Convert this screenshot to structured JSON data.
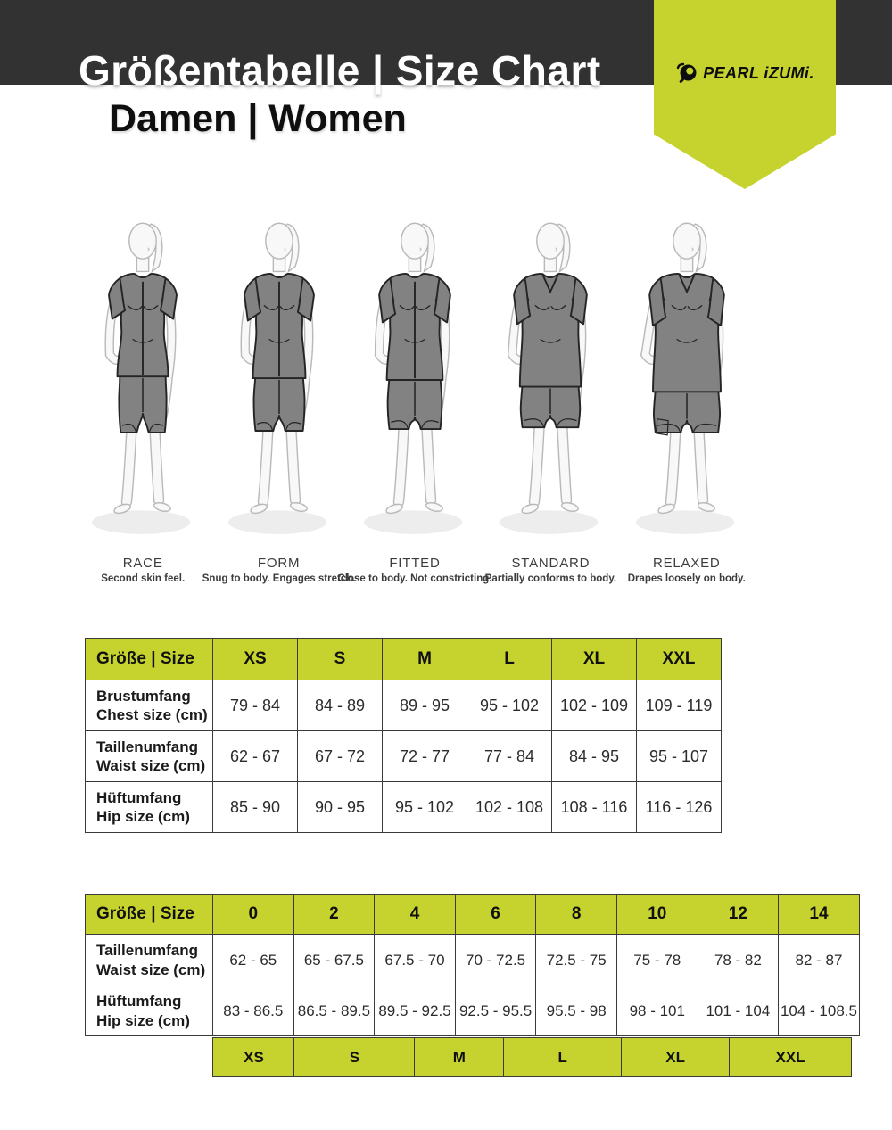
{
  "header": {
    "title": "Größentabelle | Size Chart",
    "subtitle": "Damen | Women",
    "brand": "PEARL iZUMi."
  },
  "colors": {
    "lime": "#c6d32e",
    "bar": "#323232",
    "garment": "#828282"
  },
  "fits": [
    {
      "name": "RACE",
      "desc": "Second skin feel."
    },
    {
      "name": "FORM",
      "desc": "Snug to body. Engages stretch."
    },
    {
      "name": "FITTED",
      "desc": "Close to body. Not constricting."
    },
    {
      "name": "STANDARD",
      "desc": "Partially conforms to body."
    },
    {
      "name": "RELAXED",
      "desc": "Drapes loosely on body."
    }
  ],
  "size_table": {
    "header": [
      "Größe | Size",
      "XS",
      "S",
      "M",
      "L",
      "XL",
      "XXL"
    ],
    "rows": [
      {
        "label_de": "Brustumfang",
        "label_en": "Chest size (cm)",
        "values": [
          "79 - 84",
          "84 - 89",
          "89 - 95",
          "95 - 102",
          "102 - 109",
          "109 - 119"
        ]
      },
      {
        "label_de": "Taillenumfang",
        "label_en": "Waist size (cm)",
        "values": [
          "62 - 67",
          "67 - 72",
          "72 - 77",
          "77 - 84",
          "84 - 95",
          "95 - 107"
        ]
      },
      {
        "label_de": "Hüftumfang",
        "label_en": "Hip size (cm)",
        "values": [
          "85 - 90",
          "90 - 95",
          "95 - 102",
          "102 - 108",
          "108 - 116",
          "116 - 126"
        ]
      }
    ]
  },
  "numeric_table": {
    "header": [
      "Größe | Size",
      "0",
      "2",
      "4",
      "6",
      "8",
      "10",
      "12",
      "14"
    ],
    "rows": [
      {
        "label_de": "Taillenumfang",
        "label_en": "Waist size (cm)",
        "values": [
          "62 - 65",
          "65 - 67.5",
          "67.5 - 70",
          "70 - 72.5",
          "72.5 - 75",
          "75 - 78",
          "78 - 82",
          "82 - 87"
        ]
      },
      {
        "label_de": "Hüftumfang",
        "label_en": "Hip size (cm)",
        "values": [
          "83 - 86.5",
          "86.5 - 89.5",
          "89.5 - 92.5",
          "92.5 - 95.5",
          "95.5 - 98",
          "98 - 101",
          "101 - 104",
          "104 - 108.5"
        ]
      }
    ],
    "letter_band": [
      "XS",
      "S",
      "M",
      "L",
      "XL",
      "XXL"
    ]
  }
}
